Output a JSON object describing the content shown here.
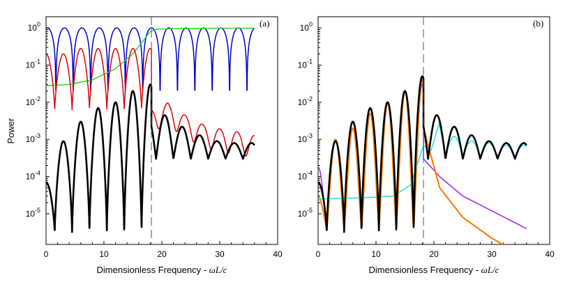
{
  "ylabel": "Power",
  "xlabel_prefix": "Dimensionless Frequency - ",
  "xlabel_math": "ωL/c",
  "colors": {
    "blue": "#0000cc",
    "red": "#e00000",
    "green": "#22dd22",
    "black": "#000000",
    "orange": "#ff7f0e",
    "purple": "#a020f0",
    "cyan": "#20e0e0",
    "dash": "#555555"
  },
  "chart_data": [
    {
      "type": "line",
      "panel_label": "(a)",
      "xlim": [
        0,
        40
      ],
      "ylim": [
        1.5e-06,
        2.0
      ],
      "yscale": "log",
      "xticks": [
        0,
        10,
        20,
        30,
        40
      ],
      "yticks": [
        "1e-5",
        "1e-4",
        "1e-3",
        "1e-2",
        "1e-1",
        "1e0"
      ],
      "vline_x": 18.2,
      "series": [
        {
          "color": "blue",
          "style": "abs-cos",
          "amp": 1.0,
          "floor": 0.01,
          "x": [
            0,
            36
          ],
          "period": 3.0,
          "offset": 0.2
        },
        {
          "color": "green",
          "style": "sigmoid",
          "points": [
            [
              0,
              0.028
            ],
            [
              4,
              0.03
            ],
            [
              8,
              0.04
            ],
            [
              12,
              0.08
            ],
            [
              15,
              0.2
            ],
            [
              17,
              0.5
            ],
            [
              18,
              0.8
            ],
            [
              19,
              0.92
            ],
            [
              22,
              0.96
            ],
            [
              30,
              0.98
            ],
            [
              36,
              0.98
            ]
          ]
        },
        {
          "color": "red",
          "style": "peaks",
          "x": [
            0,
            36
          ],
          "period": 3.0,
          "peaks_before": [
            0.2,
            0.28,
            0.28,
            0.28,
            0.28,
            0.28
          ],
          "min_before": 0.006,
          "after_curve": [
            [
              18.2,
              0.004
            ],
            [
              21,
              0.006
            ],
            [
              24,
              0.0028
            ],
            [
              27,
              0.0016
            ],
            [
              30,
              0.0012
            ],
            [
              33,
              0.001
            ],
            [
              36,
              0.0008
            ]
          ]
        },
        {
          "color": "black",
          "style": "peaks",
          "x": [
            0,
            36
          ],
          "period": 3.0,
          "peaks_before": [
            0.0009,
            0.003,
            0.007,
            0.01,
            0.02,
            0.03
          ],
          "min_before": 3e-06,
          "after_peaks": [
            0.0045,
            0.0022,
            0.0013,
            0.0009,
            0.0008,
            0.0008
          ],
          "after_min": 0.0003,
          "start_value": 7e-05
        }
      ]
    },
    {
      "type": "line",
      "panel_label": "(b)",
      "xlim": [
        0,
        40
      ],
      "ylim": [
        1.5e-06,
        2.0
      ],
      "yscale": "log",
      "xticks": [
        0,
        10,
        20,
        30,
        40
      ],
      "yticks": [
        "1e-5",
        "1e-4",
        "1e-3",
        "1e-2",
        "1e-1",
        "1e0"
      ],
      "vline_x": 18.2,
      "series": [
        {
          "color": "purple",
          "style": "peaks-decay",
          "peaks_before": [
            0.001,
            0.002,
            0.005,
            0.01,
            0.02,
            0.03
          ],
          "start_value": 0.00018,
          "after_curve": [
            [
              18.2,
              0.0003
            ],
            [
              21,
              0.0001
            ],
            [
              25,
              3e-05
            ],
            [
              30,
              1.2e-05
            ],
            [
              36,
              4e-06
            ]
          ]
        },
        {
          "color": "orange",
          "style": "peaks-decay",
          "peaks_before": [
            0.001,
            0.002,
            0.005,
            0.01,
            0.02,
            0.04
          ],
          "start_value": 2.8e-05,
          "after_curve": [
            [
              18.2,
              0.002
            ],
            [
              21,
              5e-05
            ],
            [
              25,
              8e-06
            ],
            [
              30,
              2.2e-06
            ],
            [
              33,
              1.2e-06
            ]
          ]
        },
        {
          "color": "cyan",
          "style": "cyan",
          "points": [
            [
              0,
              2.5e-05
            ],
            [
              8,
              2.7e-05
            ],
            [
              13,
              3e-05
            ],
            [
              16,
              6e-05
            ],
            [
              18.2,
              0.0007
            ],
            [
              19.5,
              0.0005
            ],
            [
              21,
              0.003
            ]
          ],
          "after_peaks": [
            0.0028,
            0.0012,
            0.0009,
            0.0008,
            0.0007,
            0.0007
          ]
        },
        {
          "color": "black",
          "style": "peaks",
          "x": [
            0,
            36
          ],
          "period": 3.0,
          "peaks_before": [
            0.0009,
            0.003,
            0.007,
            0.01,
            0.02,
            0.05
          ],
          "min_before": 3e-06,
          "after_peaks": [
            0.0045,
            0.0022,
            0.0013,
            0.0009,
            0.0008,
            0.0008
          ],
          "after_min": 0.0003,
          "start_value": 7e-05
        }
      ]
    }
  ]
}
